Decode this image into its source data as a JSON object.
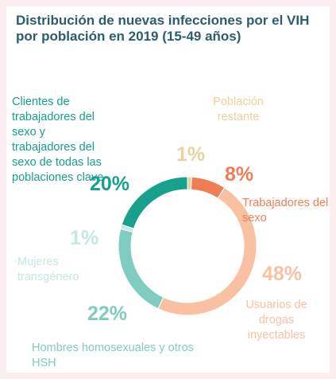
{
  "chart_data": {
    "type": "donut",
    "title": "Distribución de nuevas infecciones por el VIH por población en 2019 (15-49 años)",
    "categories": [
      "Población restante",
      "Trabajadores del sexo",
      "Usuarios de drogas inyectables",
      "Hombres homosexuales y otros HSH",
      "Mujeres transgénero",
      "Clientes de trabajadores del sexo y trabajadores del sexo de todas las poblaciones clave"
    ],
    "values": [
      1,
      8,
      48,
      22,
      1,
      20
    ],
    "value_labels": [
      "1%",
      "8%",
      "48%",
      "22%",
      "1%",
      "20%"
    ],
    "colors": [
      "#e9d29d",
      "#ef7e55",
      "#f9c1a1",
      "#80ccc1",
      "#c6e7e3",
      "#17a08c"
    ]
  }
}
